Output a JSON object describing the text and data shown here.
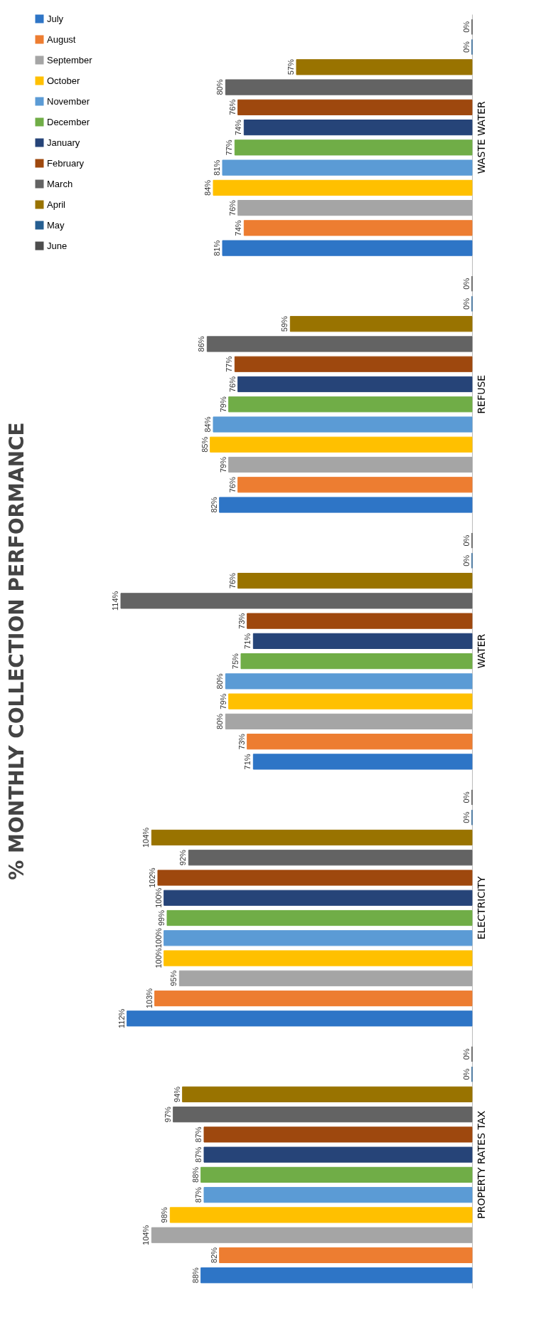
{
  "chart_data": {
    "type": "bar",
    "orientation": "horizontal",
    "title": "% MONTHLY COLLECTION PERFORMANCE",
    "categories": [
      "WASTE WATER",
      "REFUSE",
      "WATER",
      "ELECTRICITY",
      "PROPERTY RATES TAX"
    ],
    "legend": "left",
    "series": [
      {
        "name": "July",
        "color": "#2e75c6",
        "values": [
          81,
          82,
          71,
          112,
          88
        ],
        "value_labels": [
          "81%",
          "82%",
          "71%",
          "112%",
          "88%"
        ]
      },
      {
        "name": "August",
        "color": "#ed7d31",
        "values": [
          74,
          76,
          73,
          103,
          82
        ],
        "value_labels": [
          "74%",
          "76%",
          "73%",
          "103%",
          "82%"
        ]
      },
      {
        "name": "September",
        "color": "#a5a5a5",
        "values": [
          76,
          79,
          80,
          95,
          104
        ],
        "value_labels": [
          "76%",
          "79%",
          "80%",
          "95%",
          "104%"
        ]
      },
      {
        "name": "October",
        "color": "#ffc000",
        "values": [
          84,
          85,
          79,
          100,
          98
        ],
        "value_labels": [
          "84%",
          "85%",
          "79%",
          "100%",
          "98%"
        ]
      },
      {
        "name": "November",
        "color": "#5b9bd5",
        "values": [
          81,
          84,
          80,
          100,
          87
        ],
        "value_labels": [
          "81%",
          "84%",
          "80%",
          "100%",
          "87%"
        ]
      },
      {
        "name": "December",
        "color": "#70ad47",
        "values": [
          77,
          79,
          75,
          99,
          88
        ],
        "value_labels": [
          "77%",
          "79%",
          "75%",
          "99%",
          "88%"
        ]
      },
      {
        "name": "January",
        "color": "#264478",
        "values": [
          74,
          76,
          71,
          100,
          87
        ],
        "value_labels": [
          "74%",
          "76%",
          "71%",
          "100%",
          "87%"
        ]
      },
      {
        "name": "February",
        "color": "#9e480e",
        "values": [
          76,
          77,
          73,
          102,
          87
        ],
        "value_labels": [
          "76%",
          "77%",
          "73%",
          "102%",
          "87%"
        ]
      },
      {
        "name": "March",
        "color": "#636363",
        "values": [
          80,
          86,
          114,
          92,
          97
        ],
        "value_labels": [
          "80%",
          "86%",
          "114%",
          "92%",
          "97%"
        ]
      },
      {
        "name": "April",
        "color": "#997300",
        "values": [
          57,
          59,
          76,
          104,
          94
        ],
        "value_labels": [
          "57%",
          "59%",
          "76%",
          "104%",
          "94%"
        ]
      },
      {
        "name": "May",
        "color": "#255e91",
        "values": [
          0,
          0,
          0,
          0,
          0
        ],
        "value_labels": [
          "0%",
          "0%",
          "0%",
          "0%",
          "0%"
        ]
      },
      {
        "name": "June",
        "color": "#4d4d4d",
        "values": [
          0,
          0,
          0,
          0,
          0
        ],
        "value_labels": [
          "0%",
          "0%",
          "0%",
          "0%",
          "0%"
        ]
      }
    ]
  }
}
